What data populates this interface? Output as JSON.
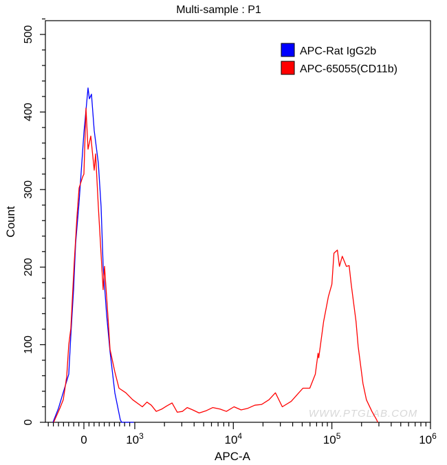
{
  "chart_data": {
    "type": "line",
    "title": "Multi-sample : P1",
    "xlabel": "APC-A",
    "ylabel": "Count",
    "xscale": "biexponential",
    "xlim": [
      -800,
      1000000
    ],
    "ylim": [
      0,
      520
    ],
    "x_ticks": [
      {
        "value": 0,
        "label": "0",
        "exp": ""
      },
      {
        "value": 1000,
        "label": "10",
        "exp": "3"
      },
      {
        "value": 10000,
        "label": "10",
        "exp": "4"
      },
      {
        "value": 100000,
        "label": "10",
        "exp": "5"
      },
      {
        "value": 1000000,
        "label": "10",
        "exp": "6"
      }
    ],
    "y_ticks": [
      0,
      100,
      200,
      300,
      400,
      500
    ],
    "y_tick_labels": [
      "0",
      "100",
      "200",
      "300",
      "400",
      "500"
    ],
    "grid": false,
    "legend_position": "top-right",
    "watermark": "WWW.PTGLAB.COM",
    "series": [
      {
        "name": "APC-Rat IgG2b",
        "color": "#0000ff",
        "points": [
          [
            -608,
            0
          ],
          [
            -500,
            18
          ],
          [
            -297,
            62
          ],
          [
            -257,
            112
          ],
          [
            -203,
            171
          ],
          [
            -162,
            231
          ],
          [
            -95,
            284
          ],
          [
            0,
            373
          ],
          [
            81,
            431
          ],
          [
            108,
            417
          ],
          [
            149,
            423
          ],
          [
            203,
            376
          ],
          [
            284,
            334
          ],
          [
            338,
            278
          ],
          [
            378,
            201
          ],
          [
            446,
            139
          ],
          [
            514,
            91
          ],
          [
            608,
            38
          ],
          [
            716,
            3
          ],
          [
            743,
            0
          ],
          [
            980,
            0
          ]
        ]
      },
      {
        "name": "APC-65055(CD11b)",
        "color": "#ff0000",
        "points": [
          [
            -595,
            0
          ],
          [
            -473,
            18
          ],
          [
            -405,
            29
          ],
          [
            -338,
            59
          ],
          [
            -297,
            100
          ],
          [
            -257,
            121
          ],
          [
            -189,
            207
          ],
          [
            -135,
            266
          ],
          [
            -95,
            302
          ],
          [
            -27,
            316
          ],
          [
            0,
            320
          ],
          [
            41,
            405
          ],
          [
            81,
            352
          ],
          [
            135,
            369
          ],
          [
            203,
            325
          ],
          [
            230,
            346
          ],
          [
            284,
            278
          ],
          [
            351,
            201
          ],
          [
            378,
            171
          ],
          [
            405,
            201
          ],
          [
            473,
            136
          ],
          [
            514,
            94
          ],
          [
            608,
            65
          ],
          [
            689,
            44
          ],
          [
            824,
            38
          ],
          [
            959,
            29
          ],
          [
            1194,
            20
          ],
          [
            1330,
            26
          ],
          [
            1471,
            22
          ],
          [
            1650,
            14
          ],
          [
            1874,
            17
          ],
          [
            2100,
            21
          ],
          [
            2388,
            25
          ],
          [
            2700,
            13
          ],
          [
            3040,
            14
          ],
          [
            3400,
            19
          ],
          [
            3866,
            16
          ],
          [
            4500,
            12
          ],
          [
            5330,
            15
          ],
          [
            6200,
            19
          ],
          [
            7360,
            17
          ],
          [
            8500,
            14
          ],
          [
            10160,
            20
          ],
          [
            12000,
            16
          ],
          [
            14030,
            18
          ],
          [
            16500,
            22
          ],
          [
            19360,
            23
          ],
          [
            23000,
            29
          ],
          [
            26730,
            38
          ],
          [
            31410,
            20
          ],
          [
            38670,
            27
          ],
          [
            44000,
            35
          ],
          [
            50800,
            44
          ],
          [
            59700,
            44
          ],
          [
            67900,
            62
          ],
          [
            72400,
            89
          ],
          [
            73600,
            83
          ],
          [
            82400,
            130
          ],
          [
            92200,
            162
          ],
          [
            100000,
            178
          ],
          [
            105000,
            218
          ],
          [
            113800,
            222
          ],
          [
            119400,
            201
          ],
          [
            127400,
            214
          ],
          [
            140300,
            201
          ],
          [
            149700,
            202
          ],
          [
            157100,
            178
          ],
          [
            175900,
            130
          ],
          [
            184600,
            98
          ],
          [
            206600,
            50
          ],
          [
            224000,
            29
          ],
          [
            254700,
            14
          ],
          [
            285100,
            3
          ],
          [
            292000,
            0
          ]
        ]
      }
    ]
  }
}
